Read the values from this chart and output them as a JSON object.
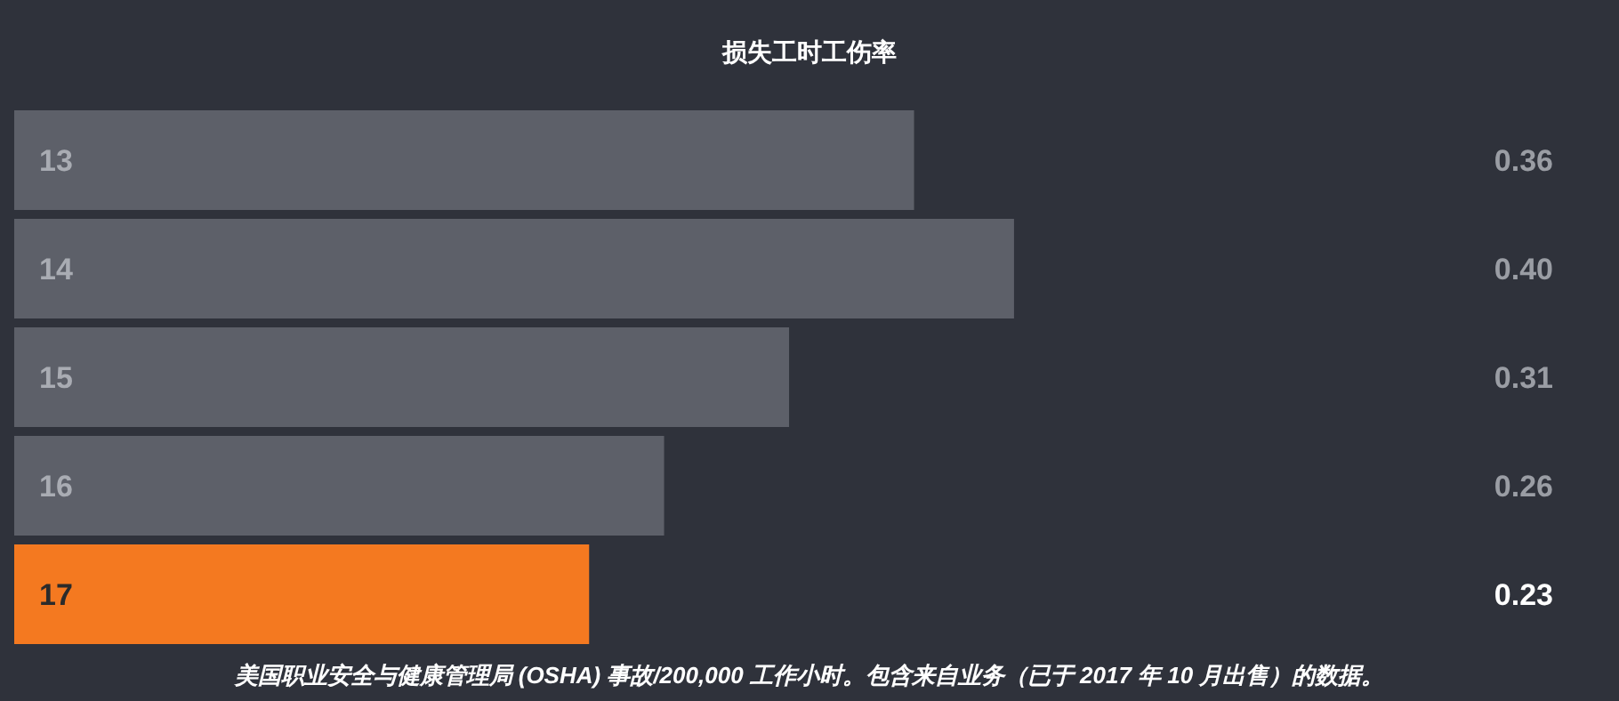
{
  "chart_data": {
    "type": "bar",
    "orientation": "horizontal",
    "title": "损失工时工伤率",
    "categories": [
      "13",
      "14",
      "15",
      "16",
      "17"
    ],
    "values": [
      0.36,
      0.4,
      0.31,
      0.26,
      0.23
    ],
    "colors": [
      "#5d6069",
      "#5d6069",
      "#5d6069",
      "#5d6069",
      "#f47920"
    ],
    "value_labels": [
      "0.36",
      "0.40",
      "0.31",
      "0.26",
      "0.23"
    ],
    "annotations": [
      "美国职业安全与健康管理局 (OSHA) 事故/200,000 工作小时。包含来自业务（已于 2017 年 10 月出售）的数据。"
    ]
  }
}
